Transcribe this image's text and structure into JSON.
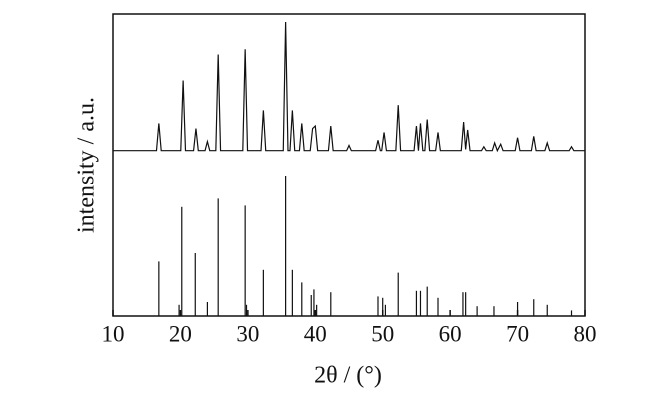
{
  "chart_data": [
    {
      "type": "line",
      "color": "#111111",
      "ylim": [
        0,
        100
      ],
      "x": [
        10,
        16.45,
        16.8,
        17.15,
        20.05,
        20.4,
        20.75,
        21.95,
        22.3,
        22.65,
        23.65,
        24.0,
        24.35,
        25.25,
        25.6,
        25.95,
        29.25,
        29.6,
        29.95,
        31.95,
        32.3,
        32.65,
        35.25,
        35.6,
        35.95,
        36.25,
        36.6,
        36.95,
        37.65,
        38.0,
        38.35,
        39.25,
        39.6,
        40.0,
        40.35,
        41.95,
        42.3,
        42.65,
        44.65,
        45.0,
        45.35,
        48.95,
        49.3,
        49.65,
        49.85,
        50.2,
        50.55,
        51.95,
        52.3,
        52.65,
        54.65,
        55.0,
        55.3,
        55.6,
        55.95,
        56.25,
        56.6,
        56.95,
        57.85,
        58.2,
        58.55,
        61.65,
        62.0,
        62.3,
        62.6,
        62.95,
        64.65,
        65.0,
        65.35,
        66.25,
        66.6,
        67.0,
        67.5,
        67.85,
        69.65,
        70.0,
        70.35,
        72.05,
        72.4,
        72.75,
        74.05,
        74.4,
        74.75,
        77.65,
        78.0,
        78.35,
        80
      ],
      "values": [
        1,
        1,
        22,
        1,
        1,
        55,
        1,
        1,
        18,
        1,
        1,
        8,
        1,
        1,
        75,
        1,
        1,
        79,
        1,
        1,
        32,
        1,
        1,
        100,
        1,
        1,
        32,
        1,
        1,
        22,
        1,
        1,
        18,
        20,
        1,
        1,
        20,
        1,
        1,
        5,
        1,
        1,
        9,
        1,
        1,
        15,
        1,
        1,
        36,
        1,
        1,
        20,
        1,
        22,
        1,
        1,
        25,
        1,
        1,
        15,
        1,
        1,
        23,
        2,
        17,
        1,
        1,
        4,
        1,
        1,
        7,
        1,
        6,
        1,
        1,
        11,
        1,
        1,
        12,
        1,
        1,
        7,
        1,
        1,
        4,
        1,
        1
      ]
    },
    {
      "type": "stem",
      "color": "#111111",
      "ylim": [
        0,
        100
      ],
      "xlim": [
        10,
        80
      ],
      "xticks": [
        10,
        20,
        30,
        40,
        50,
        60,
        70,
        80
      ],
      "xlabel": "2θ / (°)",
      "ylabel": "intensity / a.u.",
      "x": [
        16.8,
        19.8,
        20.2,
        22.2,
        24.0,
        25.6,
        29.6,
        29.8,
        32.3,
        35.6,
        36.6,
        38.0,
        39.4,
        39.8,
        40.2,
        42.3,
        49.3,
        50.0,
        50.4,
        52.3,
        55.0,
        55.6,
        56.6,
        58.2,
        61.9,
        62.3,
        64.0,
        66.5,
        70.0,
        72.4,
        74.4,
        78.0
      ],
      "values": [
        39,
        8,
        78,
        45,
        10,
        84,
        79,
        8,
        33,
        100,
        33,
        24,
        15,
        19,
        8,
        17,
        14,
        13,
        8,
        31,
        18,
        18,
        21,
        13,
        17,
        17,
        7,
        7,
        10,
        12,
        8,
        4
      ]
    }
  ]
}
